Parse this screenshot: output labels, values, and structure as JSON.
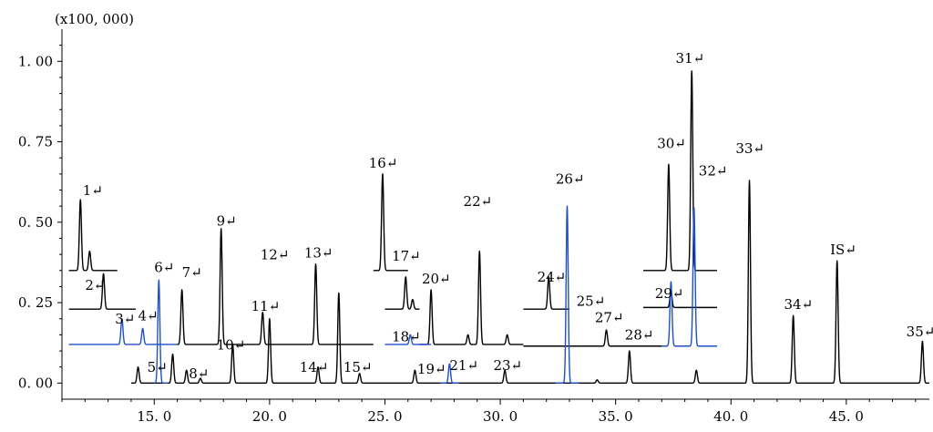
{
  "chart_data": {
    "type": "line",
    "title": "",
    "xlabel": "",
    "ylabel": "",
    "unit_label": "(x100, 000)",
    "xlim": [
      11.0,
      48.6
    ],
    "ylim": [
      -0.05,
      1.1
    ],
    "x_ticks": [
      15.0,
      20.0,
      25.0,
      30.0,
      35.0,
      40.0,
      45.0
    ],
    "x_tick_labels": [
      "15. 0",
      "20. 0",
      "25. 0",
      "30. 0",
      "35. 0",
      "40. 0",
      "45. 0"
    ],
    "y_ticks": [
      0.0,
      0.25,
      0.5,
      0.75,
      1.0
    ],
    "y_tick_labels": [
      "0. 00",
      "0. 25",
      "0. 50",
      "0. 75",
      "1. 00"
    ],
    "colors": {
      "black": "#000000",
      "blue": "#1f4fc9",
      "axis": "#000000"
    },
    "series": [
      {
        "color": "#000000",
        "baseline": 0.0,
        "x_range": [
          14.0,
          48.6
        ],
        "peaks": [
          {
            "x": 14.3,
            "h": 0.05
          },
          {
            "x": 15.8,
            "h": 0.09
          },
          {
            "x": 16.4,
            "h": 0.04
          },
          {
            "x": 17.0,
            "h": 0.015
          },
          {
            "x": 18.4,
            "h": 0.12
          },
          {
            "x": 20.0,
            "h": 0.2
          },
          {
            "x": 22.1,
            "h": 0.05
          },
          {
            "x": 23.0,
            "h": 0.28
          },
          {
            "x": 23.9,
            "h": 0.03
          },
          {
            "x": 26.3,
            "h": 0.04
          },
          {
            "x": 30.2,
            "h": 0.04
          },
          {
            "x": 34.2,
            "h": 0.01
          },
          {
            "x": 35.6,
            "h": 0.1
          },
          {
            "x": 38.5,
            "h": 0.04
          },
          {
            "x": 40.8,
            "h": 0.63
          },
          {
            "x": 42.7,
            "h": 0.21
          },
          {
            "x": 44.6,
            "h": 0.38
          },
          {
            "x": 48.3,
            "h": 0.13
          }
        ]
      },
      {
        "color": "#000000",
        "baseline": 0.12,
        "x_range": [
          16.0,
          24.5
        ],
        "peaks": [
          {
            "x": 16.2,
            "h": 0.17
          },
          {
            "x": 17.9,
            "h": 0.36
          },
          {
            "x": 19.7,
            "h": 0.1
          },
          {
            "x": 22.0,
            "h": 0.25
          }
        ]
      },
      {
        "color": "#000000",
        "baseline": 0.12,
        "x_range": [
          26.5,
          31.0
        ],
        "peaks": [
          {
            "x": 27.0,
            "h": 0.17
          },
          {
            "x": 28.6,
            "h": 0.03
          },
          {
            "x": 29.1,
            "h": 0.29
          },
          {
            "x": 30.3,
            "h": 0.03
          }
        ]
      },
      {
        "color": "#000000",
        "baseline": 0.115,
        "x_range": [
          31.0,
          37.0
        ],
        "peaks": [
          {
            "x": 34.6,
            "h": 0.05
          }
        ]
      },
      {
        "color": "#000000",
        "baseline": 0.35,
        "x_range": [
          11.3,
          13.4
        ],
        "peaks": [
          {
            "x": 11.8,
            "h": 0.22
          },
          {
            "x": 12.2,
            "h": 0.06
          }
        ]
      },
      {
        "color": "#000000",
        "baseline": 0.23,
        "x_range": [
          11.3,
          14.2
        ],
        "peaks": [
          {
            "x": 12.8,
            "h": 0.11
          }
        ]
      },
      {
        "color": "#000000",
        "baseline": 0.35,
        "x_range": [
          24.5,
          26.0
        ],
        "peaks": [
          {
            "x": 24.9,
            "h": 0.3
          }
        ]
      },
      {
        "color": "#000000",
        "baseline": 0.23,
        "x_range": [
          25.0,
          26.5
        ],
        "peaks": [
          {
            "x": 25.9,
            "h": 0.1
          },
          {
            "x": 26.2,
            "h": 0.03
          }
        ]
      },
      {
        "color": "#000000",
        "baseline": 0.23,
        "x_range": [
          31.0,
          33.0
        ],
        "peaks": [
          {
            "x": 32.1,
            "h": 0.1
          }
        ]
      },
      {
        "color": "#000000",
        "baseline": 0.35,
        "x_range": [
          36.2,
          39.4
        ],
        "peaks": [
          {
            "x": 37.3,
            "h": 0.33
          },
          {
            "x": 38.3,
            "h": 0.62
          }
        ]
      },
      {
        "color": "#000000",
        "baseline": 0.235,
        "x_range": [
          36.2,
          39.4
        ],
        "peaks": [
          {
            "x": 37.4,
            "h": 0.05
          }
        ]
      },
      {
        "color": "#1f4fc9",
        "baseline": 0.12,
        "x_range": [
          11.3,
          16.0
        ],
        "peaks": [
          {
            "x": 13.6,
            "h": 0.08
          },
          {
            "x": 14.5,
            "h": 0.05
          }
        ]
      },
      {
        "color": "#1f4fc9",
        "baseline": 0.0,
        "x_range": [
          15.0,
          15.6
        ],
        "peaks": [
          {
            "x": 15.2,
            "h": 0.32
          }
        ]
      },
      {
        "color": "#1f4fc9",
        "baseline": 0.12,
        "x_range": [
          25.0,
          27.0
        ],
        "peaks": [
          {
            "x": 26.1,
            "h": 0.03
          }
        ]
      },
      {
        "color": "#1f4fc9",
        "baseline": 0.0,
        "x_range": [
          27.4,
          28.2
        ],
        "peaks": [
          {
            "x": 27.8,
            "h": 0.06
          }
        ]
      },
      {
        "color": "#1f4fc9",
        "baseline": 0.0,
        "x_range": [
          32.4,
          33.4
        ],
        "peaks": [
          {
            "x": 32.9,
            "h": 0.55
          }
        ]
      },
      {
        "color": "#1f4fc9",
        "baseline": 0.115,
        "x_range": [
          37.0,
          39.4
        ],
        "peaks": [
          {
            "x": 37.4,
            "h": 0.2
          },
          {
            "x": 38.4,
            "h": 0.43
          }
        ]
      }
    ],
    "annotations": [
      {
        "text": "1↵",
        "x": 11.9,
        "y": 0.585
      },
      {
        "text": "2↵",
        "x": 12.0,
        "y": 0.29
      },
      {
        "text": "3↵",
        "x": 13.3,
        "y": 0.185
      },
      {
        "text": "4↵",
        "x": 14.3,
        "y": 0.195
      },
      {
        "text": "5↵",
        "x": 14.7,
        "y": 0.035
      },
      {
        "text": "6↵",
        "x": 15.0,
        "y": 0.345
      },
      {
        "text": "7↵",
        "x": 16.2,
        "y": 0.33
      },
      {
        "text": "8↵",
        "x": 16.5,
        "y": 0.015
      },
      {
        "text": "9↵",
        "x": 17.7,
        "y": 0.49
      },
      {
        "text": "10↵",
        "x": 17.7,
        "y": 0.105
      },
      {
        "text": "11↵",
        "x": 19.2,
        "y": 0.225
      },
      {
        "text": "12↵",
        "x": 19.6,
        "y": 0.385
      },
      {
        "text": "13↵",
        "x": 21.5,
        "y": 0.39
      },
      {
        "text": "14↵",
        "x": 21.3,
        "y": 0.035
      },
      {
        "text": "15↵",
        "x": 23.2,
        "y": 0.035
      },
      {
        "text": "16↵",
        "x": 24.3,
        "y": 0.67
      },
      {
        "text": "17↵",
        "x": 25.3,
        "y": 0.38
      },
      {
        "text": "18↵",
        "x": 25.3,
        "y": 0.13
      },
      {
        "text": "19↵",
        "x": 26.4,
        "y": 0.03
      },
      {
        "text": "20↵",
        "x": 26.6,
        "y": 0.31
      },
      {
        "text": "21↵",
        "x": 27.8,
        "y": 0.04
      },
      {
        "text": "22↵",
        "x": 28.4,
        "y": 0.55
      },
      {
        "text": "23↵",
        "x": 29.7,
        "y": 0.04
      },
      {
        "text": "24↵",
        "x": 31.6,
        "y": 0.315
      },
      {
        "text": "25↵",
        "x": 33.3,
        "y": 0.24
      },
      {
        "text": "26↵",
        "x": 32.4,
        "y": 0.62
      },
      {
        "text": "27↵",
        "x": 34.1,
        "y": 0.19
      },
      {
        "text": "28↵",
        "x": 35.4,
        "y": 0.135
      },
      {
        "text": "29↵",
        "x": 36.7,
        "y": 0.265
      },
      {
        "text": "30↵",
        "x": 36.8,
        "y": 0.73
      },
      {
        "text": "31↵",
        "x": 37.6,
        "y": 0.995
      },
      {
        "text": "32↵",
        "x": 38.6,
        "y": 0.645
      },
      {
        "text": "33↵",
        "x": 40.2,
        "y": 0.715
      },
      {
        "text": "34↵",
        "x": 42.3,
        "y": 0.23
      },
      {
        "text": "IS↵",
        "x": 44.3,
        "y": 0.4
      },
      {
        "text": "35↵",
        "x": 47.6,
        "y": 0.145
      }
    ]
  }
}
